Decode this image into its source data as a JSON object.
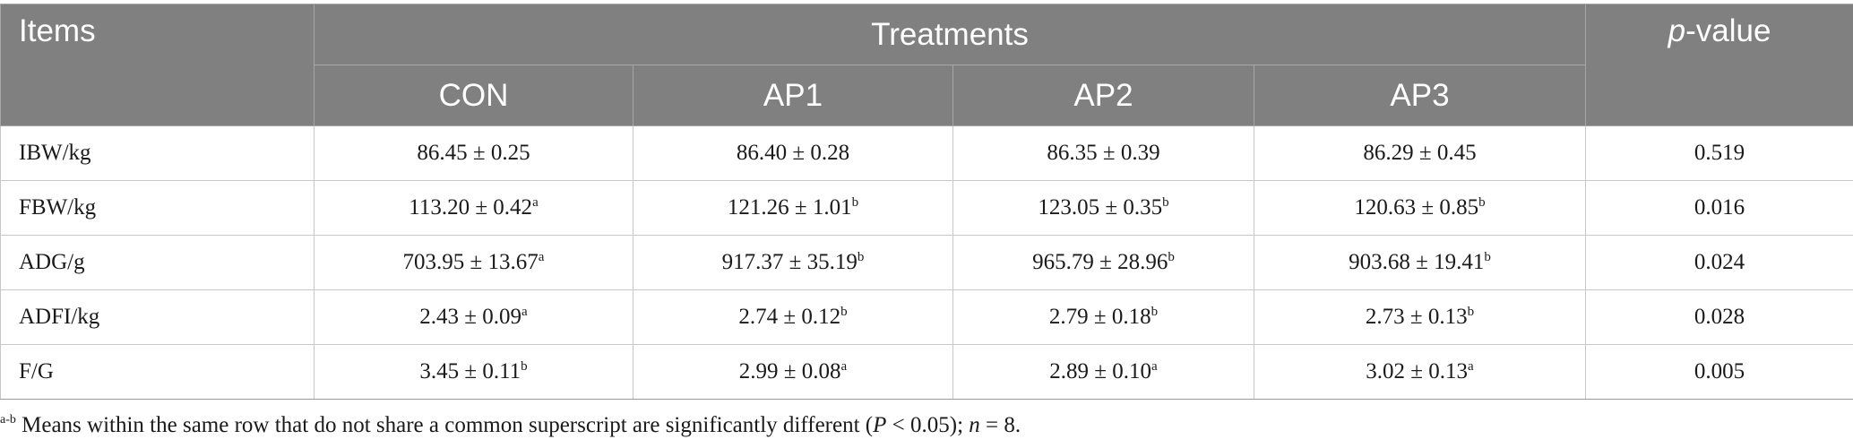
{
  "header": {
    "items_label": "Items",
    "treatments_label": "Treatments",
    "pvalue_italic": "p",
    "pvalue_rest": "-value",
    "groups": [
      "CON",
      "AP1",
      "AP2",
      "AP3"
    ]
  },
  "rows": [
    {
      "label": "IBW/kg",
      "cells": [
        {
          "value": "86.45 ± 0.25",
          "sup": ""
        },
        {
          "value": "86.40 ± 0.28",
          "sup": ""
        },
        {
          "value": "86.35 ± 0.39",
          "sup": ""
        },
        {
          "value": "86.29 ± 0.45",
          "sup": ""
        }
      ],
      "p": "0.519"
    },
    {
      "label": "FBW/kg",
      "cells": [
        {
          "value": "113.20 ± 0.42",
          "sup": "a"
        },
        {
          "value": "121.26 ± 1.01",
          "sup": "b"
        },
        {
          "value": "123.05 ± 0.35",
          "sup": "b"
        },
        {
          "value": "120.63 ± 0.85",
          "sup": "b"
        }
      ],
      "p": "0.016"
    },
    {
      "label": "ADG/g",
      "cells": [
        {
          "value": "703.95 ± 13.67",
          "sup": "a"
        },
        {
          "value": "917.37 ± 35.19",
          "sup": "b"
        },
        {
          "value": "965.79 ± 28.96",
          "sup": "b"
        },
        {
          "value": "903.68 ± 19.41",
          "sup": "b"
        }
      ],
      "p": "0.024"
    },
    {
      "label": "ADFI/kg",
      "cells": [
        {
          "value": "2.43 ± 0.09",
          "sup": "a"
        },
        {
          "value": "2.74 ± 0.12",
          "sup": "b"
        },
        {
          "value": "2.79 ± 0.18",
          "sup": "b"
        },
        {
          "value": "2.73 ± 0.13",
          "sup": "b"
        }
      ],
      "p": "0.028"
    },
    {
      "label": "F/G",
      "cells": [
        {
          "value": "3.45 ± 0.11",
          "sup": "b"
        },
        {
          "value": "2.99 ± 0.08",
          "sup": "a"
        },
        {
          "value": "2.89 ± 0.10",
          "sup": "a"
        },
        {
          "value": "3.02 ± 0.13",
          "sup": "a"
        }
      ],
      "p": "0.005"
    }
  ],
  "footnote": {
    "sup": "a-b",
    "text_before": " Means within the same row that do not share a common superscript are significantly different (",
    "p_italic": "P",
    "text_middle": " < 0.05); ",
    "n_italic": "n",
    "text_after": " = 8."
  }
}
